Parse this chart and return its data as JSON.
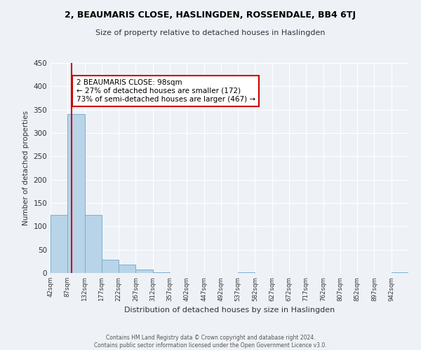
{
  "title": "2, BEAUMARIS CLOSE, HASLINGDEN, ROSSENDALE, BB4 6TJ",
  "subtitle": "Size of property relative to detached houses in Haslingden",
  "xlabel": "Distribution of detached houses by size in Haslingden",
  "ylabel": "Number of detached properties",
  "footer_line1": "Contains HM Land Registry data © Crown copyright and database right 2024.",
  "footer_line2": "Contains public sector information licensed under the Open Government Licence v3.0.",
  "bin_labels": [
    "42sqm",
    "87sqm",
    "132sqm",
    "177sqm",
    "222sqm",
    "267sqm",
    "312sqm",
    "357sqm",
    "402sqm",
    "447sqm",
    "492sqm",
    "537sqm",
    "582sqm",
    "627sqm",
    "672sqm",
    "717sqm",
    "762sqm",
    "807sqm",
    "852sqm",
    "897sqm",
    "942sqm"
  ],
  "bar_values": [
    125,
    340,
    125,
    28,
    18,
    7,
    2,
    0,
    0,
    0,
    0,
    2,
    0,
    0,
    0,
    0,
    0,
    0,
    0,
    0,
    2
  ],
  "bar_color": "#b8d4e8",
  "bar_edgecolor": "#7aafd4",
  "ylim": [
    0,
    450
  ],
  "yticks": [
    0,
    50,
    100,
    150,
    200,
    250,
    300,
    350,
    400,
    450
  ],
  "property_line_x": 98,
  "property_line_color": "#cc0000",
  "annotation_title": "2 BEAUMARIS CLOSE: 98sqm",
  "annotation_line1": "← 27% of detached houses are smaller (172)",
  "annotation_line2": "73% of semi-detached houses are larger (467) →",
  "annotation_box_color": "#ffffff",
  "annotation_box_edgecolor": "#cc0000",
  "background_color": "#eef2f7",
  "grid_color": "#ffffff",
  "bin_width": 45
}
